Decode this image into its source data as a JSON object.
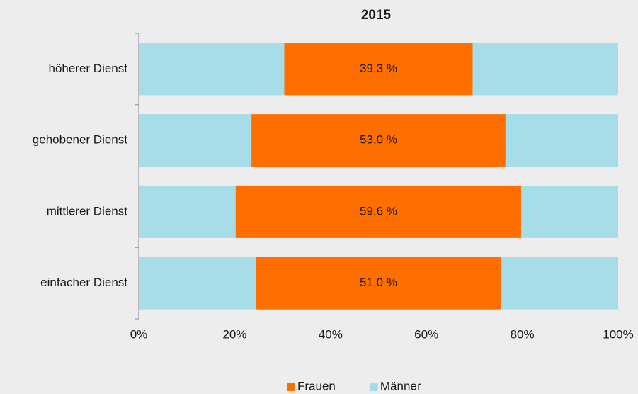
{
  "chart_data": {
    "type": "bar",
    "orientation": "horizontal",
    "stacking": "centered",
    "title": "2015",
    "categories": [
      "höherer Dienst",
      "gehobener Dienst",
      "mittlerer Dienst",
      "einfacher Dienst"
    ],
    "series": [
      {
        "name": "Frauen",
        "color": "#ff6f00",
        "values": [
          39.3,
          53.0,
          59.6,
          51.0
        ],
        "value_labels": [
          "39,3 %",
          "53,0 %",
          "59,6 %",
          "51,0 %"
        ]
      },
      {
        "name": "Männer",
        "color": "#a6dde9",
        "values": [
          60.7,
          47.0,
          40.4,
          49.0
        ]
      }
    ],
    "xlim": [
      0,
      100
    ],
    "xticks": [
      {
        "value": 0,
        "label": "0%"
      },
      {
        "value": 20,
        "label": "20%"
      },
      {
        "value": 40,
        "label": "40%"
      },
      {
        "value": 60,
        "label": "60%"
      },
      {
        "value": 80,
        "label": "80%"
      },
      {
        "value": 100,
        "label": "100%"
      }
    ],
    "legend": "bottom"
  }
}
